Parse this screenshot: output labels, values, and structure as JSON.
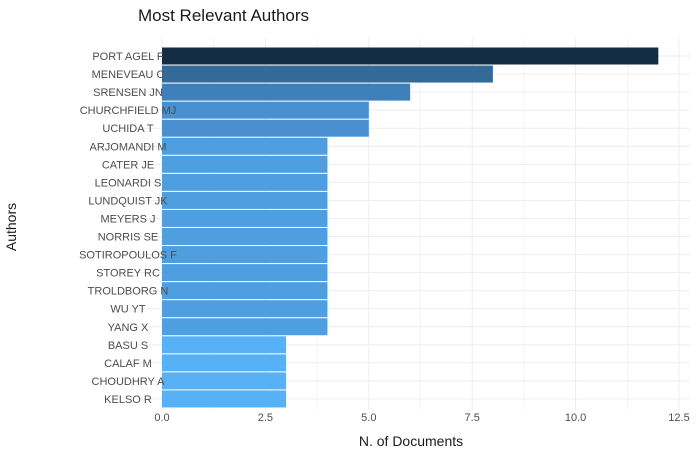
{
  "chart_data": {
    "type": "bar",
    "orientation": "horizontal",
    "title": "Most Relevant Authors",
    "xlabel": "N. of Documents",
    "ylabel": "Authors",
    "xlim": [
      0,
      12.5
    ],
    "x_ticks": [
      "0.0",
      "2.5",
      "5.0",
      "7.5",
      "10.0",
      "12.5"
    ],
    "x_tick_values": [
      0,
      2.5,
      5,
      7.5,
      10,
      12.5
    ],
    "grid": true,
    "categories": [
      "PORT AGEL F",
      "MENEVEAU C",
      "SRENSEN JN",
      "CHURCHFIELD MJ",
      "UCHIDA T",
      "ARJOMANDI M",
      "CATER JE",
      "LEONARDI S",
      "LUNDQUIST JK",
      "MEYERS J",
      "NORRIS SE",
      "SOTIROPOULOS F",
      "STOREY RC",
      "TROLDBORG N",
      "WU YT",
      "YANG X",
      "BASU S",
      "CALAF M",
      "CHOUDHRY A",
      "KELSO R"
    ],
    "values": [
      12,
      8,
      6,
      5,
      5,
      4,
      4,
      4,
      4,
      4,
      4,
      4,
      4,
      4,
      4,
      4,
      3,
      3,
      3,
      3
    ],
    "colors": {
      "12": "#132b43",
      "8": "#336a98",
      "6": "#3d80bc",
      "5": "#4a90d0",
      "4": "#4e9ee0",
      "3": "#56b1f7"
    }
  }
}
